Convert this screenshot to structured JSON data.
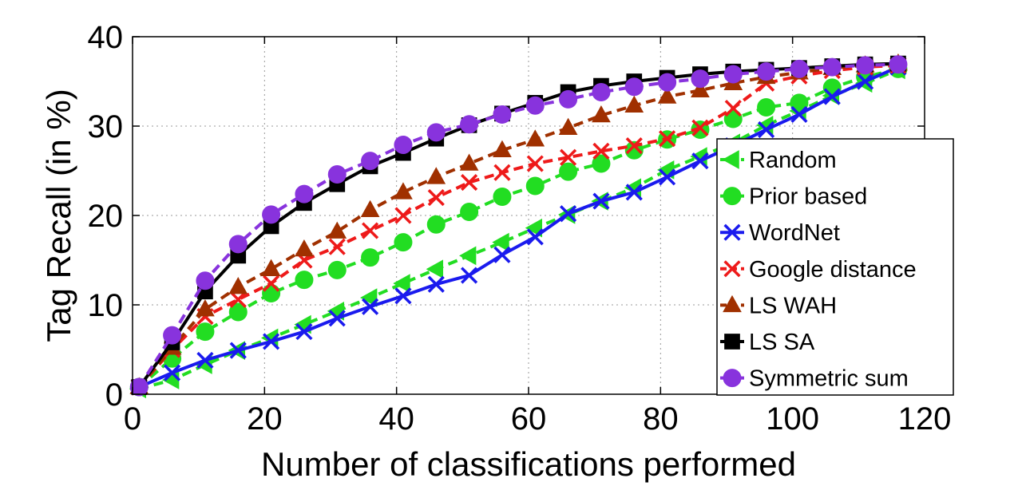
{
  "chart_data": {
    "type": "line",
    "xlabel": "Number of classifications performed",
    "ylabel": "Tag Recall (in %)",
    "xlim": [
      0,
      120
    ],
    "ylim": [
      0,
      40
    ],
    "xticks": [
      "0",
      "20",
      "40",
      "60",
      "80",
      "100",
      "120"
    ],
    "yticks": [
      "0",
      "10",
      "20",
      "30",
      "40"
    ],
    "grid": true,
    "legend_position": "right",
    "x": [
      1,
      6,
      11,
      16,
      21,
      26,
      31,
      36,
      41,
      46,
      51,
      56,
      61,
      66,
      71,
      76,
      81,
      86,
      91,
      96,
      101,
      106,
      111,
      116
    ],
    "series": [
      {
        "name": "Random",
        "color": "#22dd22",
        "marker": "triangle-left",
        "dash": "dashed",
        "values": [
          0.6,
          1.6,
          3.3,
          4.9,
          6.3,
          7.8,
          9.3,
          10.8,
          12.4,
          14.0,
          15.5,
          17.0,
          18.6,
          20.1,
          21.6,
          23.1,
          25.1,
          26.6,
          28.1,
          30.1,
          31.7,
          33.4,
          34.8,
          36.3
        ]
      },
      {
        "name": "Prior based",
        "color": "#22dd22",
        "marker": "circle",
        "dash": "dashed",
        "values": [
          0.8,
          4.0,
          7.0,
          9.2,
          11.3,
          12.8,
          13.9,
          15.3,
          17.0,
          19.0,
          20.4,
          22.1,
          23.3,
          24.9,
          25.8,
          27.3,
          28.5,
          29.6,
          30.8,
          32.1,
          32.6,
          34.3,
          35.5,
          36.4
        ]
      },
      {
        "name": "WordNet",
        "color": "#1a1aee",
        "marker": "x",
        "dash": "solid",
        "values": [
          0.8,
          2.4,
          3.8,
          4.9,
          5.9,
          7.0,
          8.5,
          9.8,
          11.0,
          12.3,
          13.3,
          15.6,
          17.6,
          20.2,
          21.6,
          22.6,
          24.3,
          26.1,
          27.8,
          29.6,
          31.3,
          33.3,
          35.0,
          36.6
        ]
      },
      {
        "name": "Google distance",
        "color": "#ee1a1a",
        "marker": "x",
        "dash": "dashed",
        "values": [
          0.8,
          5.0,
          8.7,
          10.6,
          12.4,
          15.0,
          16.5,
          18.3,
          20.0,
          22.0,
          23.7,
          24.8,
          25.8,
          26.5,
          27.2,
          27.8,
          28.6,
          29.8,
          32.0,
          34.8,
          35.6,
          36.2,
          36.6,
          36.8
        ]
      },
      {
        "name": "LS WAH",
        "color": "#a03000",
        "marker": "triangle-up",
        "dash": "dashed",
        "values": [
          0.8,
          5.2,
          9.5,
          12.0,
          14.0,
          16.2,
          18.2,
          20.6,
          22.6,
          24.3,
          25.8,
          27.3,
          28.5,
          29.8,
          31.2,
          32.3,
          33.3,
          34.0,
          34.8,
          35.5,
          36.0,
          36.5,
          36.8,
          37.0
        ]
      },
      {
        "name": "LS SA",
        "color": "#000000",
        "marker": "square",
        "dash": "solid",
        "values": [
          0.8,
          5.8,
          11.5,
          15.5,
          18.8,
          21.4,
          23.5,
          25.5,
          27.0,
          28.6,
          30.1,
          31.4,
          32.6,
          33.8,
          34.5,
          35.0,
          35.4,
          35.8,
          36.1,
          36.3,
          36.5,
          36.7,
          36.9,
          37.0
        ]
      },
      {
        "name": "Symmetric sum",
        "color": "#8833dd",
        "marker": "circle",
        "dash": "dashed",
        "values": [
          0.8,
          6.6,
          12.7,
          16.8,
          20.1,
          22.4,
          24.6,
          26.1,
          27.9,
          29.3,
          30.2,
          31.3,
          32.3,
          33.0,
          33.8,
          34.4,
          34.9,
          35.3,
          35.8,
          36.1,
          36.4,
          36.6,
          36.8,
          36.9
        ]
      }
    ]
  }
}
